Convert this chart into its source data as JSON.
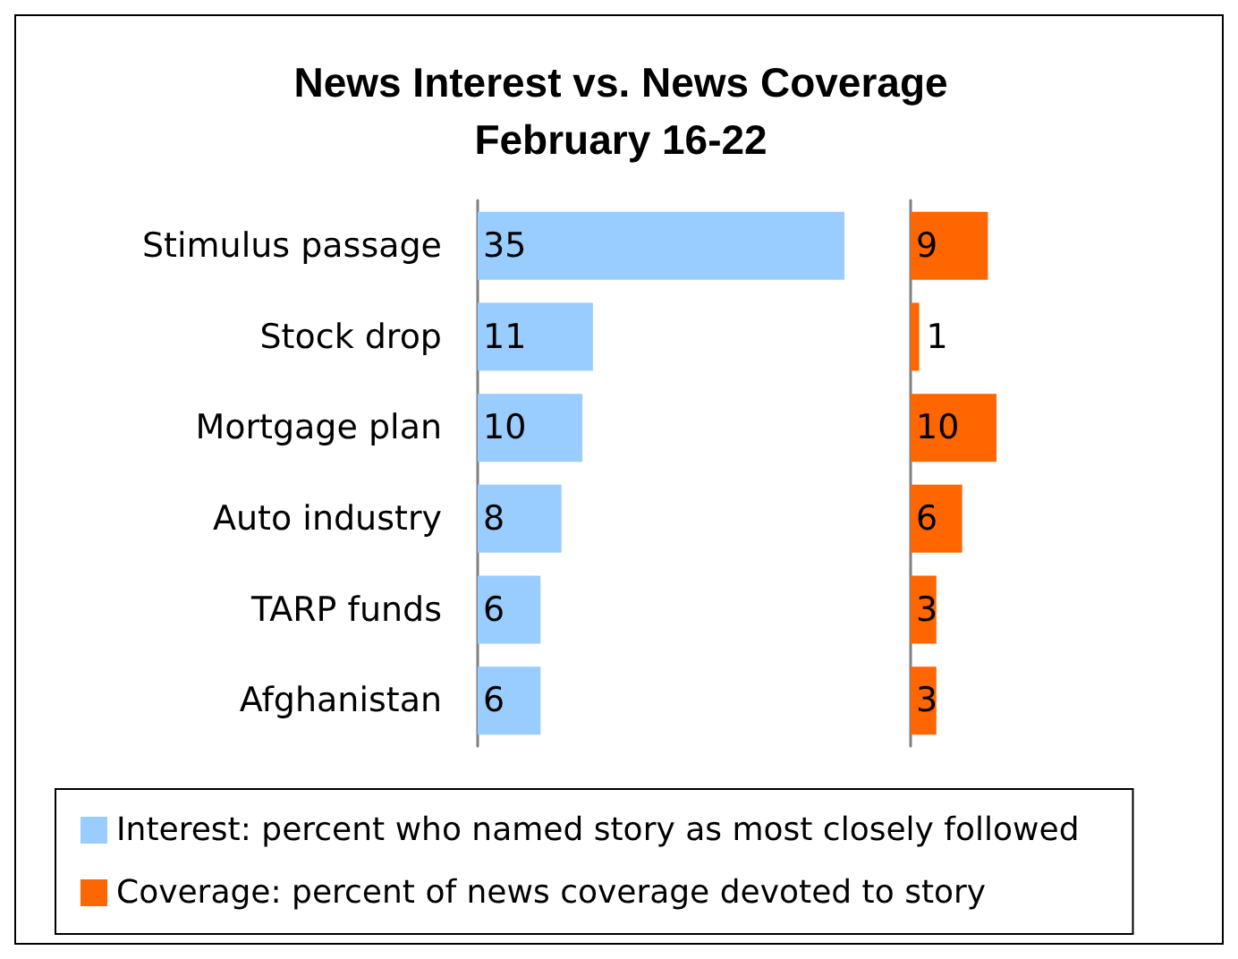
{
  "chart_data": [
    {
      "type": "bar",
      "orientation": "horizontal",
      "title": "News Interest vs. News Coverage\nFebruary 16-22",
      "categories": [
        "Stimulus passage",
        "Stock drop",
        "Mortgage plan",
        "Auto industry",
        "TARP funds",
        "Afghanistan"
      ],
      "series": [
        {
          "name": "Interest: percent who named story as most closely followed",
          "color": "#99ccff",
          "values": [
            35,
            11,
            10,
            8,
            6,
            6
          ]
        }
      ],
      "data_labels": true,
      "legend": "bottom"
    },
    {
      "type": "bar",
      "orientation": "horizontal",
      "categories": [
        null,
        null,
        null,
        null,
        null,
        null
      ],
      "series": [
        {
          "name": "Coverage: percent of news coverage devoted to story",
          "color": "#ff6600",
          "values": [
            9,
            1,
            10,
            6,
            3,
            3
          ]
        }
      ],
      "data_labels": true,
      "legend": "bottom"
    }
  ]
}
